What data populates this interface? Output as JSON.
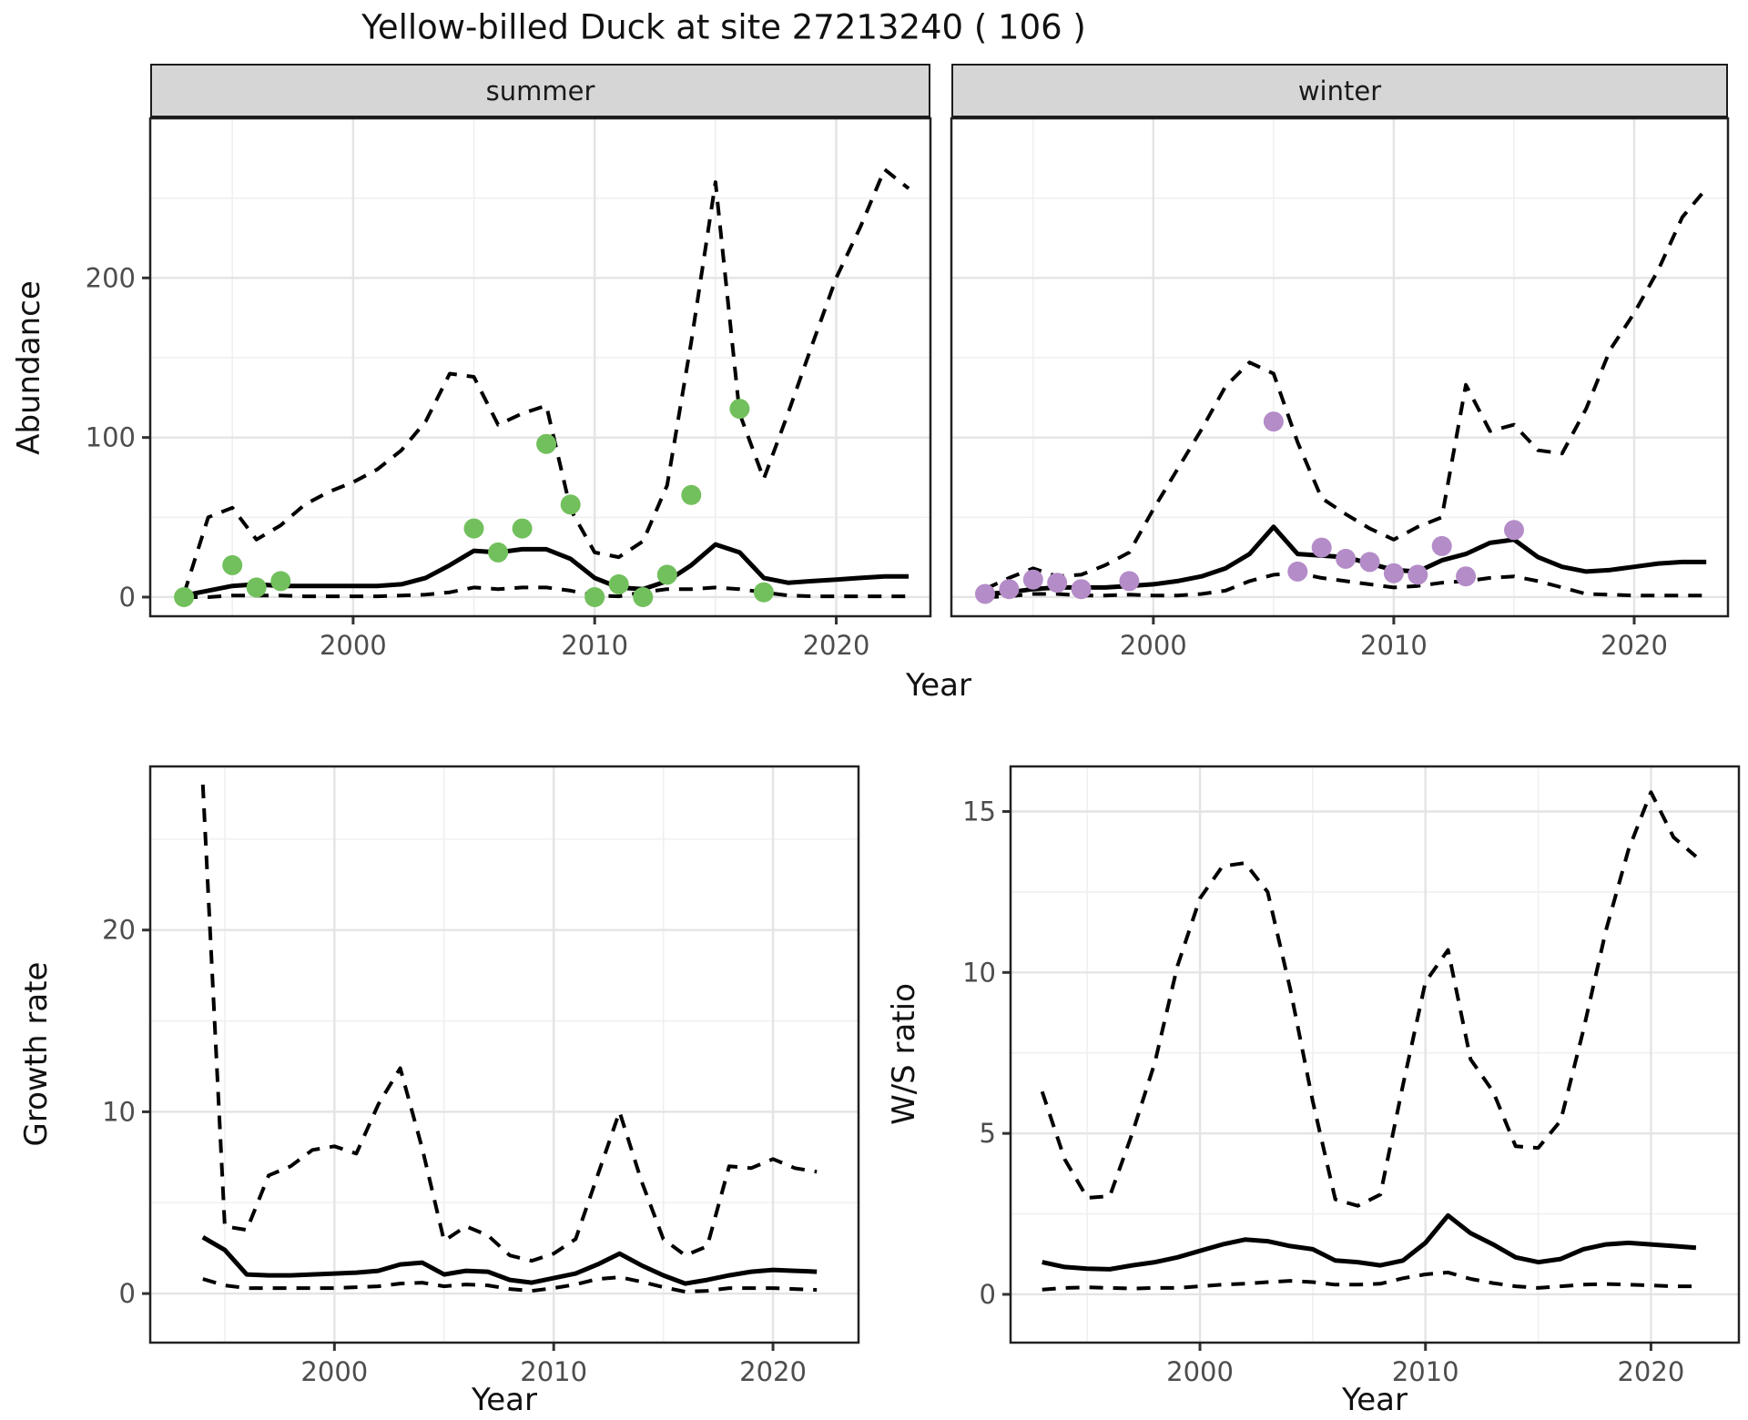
{
  "title": "Yellow-billed Duck at site 27213240 ( 106 )",
  "labels": {
    "year_axis": "Year",
    "abundance_axis": "Abundance",
    "growth_axis": "Growth rate",
    "ws_axis": "W/S ratio",
    "facet_summer": "summer",
    "facet_winter": "winter"
  },
  "colors": {
    "summer_points": "#72c05d",
    "winter_points": "#b48cc8",
    "fit_line": "#000000",
    "ci_line": "#000000",
    "grid_major": "#e4e4e4",
    "grid_minor": "#f0f0f0",
    "strip_bg": "#d6d6d6",
    "panel_border": "#222222",
    "axis_text": "#4d4d4d"
  },
  "chart_data": [
    {
      "id": "abundance-summer",
      "type": "line",
      "facet": "summer",
      "x_label": "Year",
      "y_label": "Abundance",
      "xlim": [
        1991.6,
        2023.9
      ],
      "ylim": [
        -12,
        300
      ],
      "xticks": [
        2000,
        2010,
        2020
      ],
      "xticks_minor": [
        1995,
        2005,
        2015
      ],
      "yticks": [
        0,
        100,
        200
      ],
      "yticks_minor": [
        50,
        150,
        250
      ],
      "grid": true,
      "legend": "none",
      "years": [
        1993,
        1994,
        1995,
        1996,
        1997,
        1998,
        1999,
        2000,
        2001,
        2002,
        2003,
        2004,
        2005,
        2006,
        2007,
        2008,
        2009,
        2010,
        2011,
        2012,
        2013,
        2014,
        2015,
        2016,
        2017,
        2018,
        2019,
        2020,
        2021,
        2022,
        2023
      ],
      "series": [
        {
          "name": "fit",
          "style": "solid",
          "values": [
            1,
            4,
            7,
            8,
            7,
            7,
            7,
            7,
            7,
            8,
            12,
            20,
            29,
            28,
            30,
            30,
            24,
            12,
            6,
            5,
            10,
            20,
            33,
            28,
            12,
            9,
            10,
            11,
            12,
            13,
            13
          ]
        },
        {
          "name": "upper_ci",
          "style": "dashed",
          "values": [
            2,
            50,
            56,
            36,
            45,
            58,
            66,
            72,
            80,
            92,
            110,
            140,
            138,
            108,
            115,
            120,
            55,
            28,
            25,
            35,
            70,
            160,
            260,
            115,
            74,
            115,
            158,
            200,
            232,
            268,
            256
          ]
        },
        {
          "name": "lower_ci",
          "style": "dashed",
          "values": [
            0,
            0,
            1,
            1,
            1,
            0.5,
            0.5,
            0.5,
            0.5,
            1,
            1.5,
            3,
            6,
            5,
            6,
            6,
            4,
            1,
            0.5,
            3,
            5,
            5,
            6,
            5,
            3,
            1,
            0.5,
            0.5,
            0.5,
            0.5,
            0.5
          ]
        }
      ],
      "observed_points": {
        "color_key": "summer_points",
        "data": [
          [
            1993,
            0
          ],
          [
            1995,
            20
          ],
          [
            1996,
            6
          ],
          [
            1997,
            10
          ],
          [
            2005,
            43
          ],
          [
            2006,
            28
          ],
          [
            2007,
            43
          ],
          [
            2008,
            96
          ],
          [
            2009,
            58
          ],
          [
            2010,
            0
          ],
          [
            2011,
            8
          ],
          [
            2012,
            0
          ],
          [
            2013,
            14
          ],
          [
            2014,
            64
          ],
          [
            2016,
            118
          ],
          [
            2017,
            3
          ]
        ]
      }
    },
    {
      "id": "abundance-winter",
      "type": "line",
      "facet": "winter",
      "x_label": "Year",
      "y_label": "Abundance",
      "xlim": [
        1991.6,
        2023.9
      ],
      "ylim": [
        -12,
        300
      ],
      "xticks": [
        2000,
        2010,
        2020
      ],
      "xticks_minor": [
        1995,
        2005,
        2015
      ],
      "yticks": [
        0,
        100,
        200
      ],
      "yticks_minor": [
        50,
        150,
        250
      ],
      "grid": true,
      "legend": "none",
      "years": [
        1993,
        1994,
        1995,
        1996,
        1997,
        1998,
        1999,
        2000,
        2001,
        2002,
        2003,
        2004,
        2005,
        2006,
        2007,
        2008,
        2009,
        2010,
        2011,
        2012,
        2013,
        2014,
        2015,
        2016,
        2017,
        2018,
        2019,
        2020,
        2021,
        2022,
        2023
      ],
      "series": [
        {
          "name": "fit",
          "style": "solid",
          "values": [
            2,
            3,
            5,
            6,
            6,
            6,
            7,
            8,
            10,
            13,
            18,
            27,
            44,
            27,
            26,
            25,
            21,
            17,
            16,
            23,
            27,
            34,
            36,
            25,
            19,
            16,
            17,
            19,
            21,
            22,
            22
          ]
        },
        {
          "name": "upper_ci",
          "style": "dashed",
          "values": [
            5,
            12,
            18,
            13,
            14,
            20,
            28,
            55,
            80,
            105,
            132,
            147,
            140,
            97,
            62,
            52,
            43,
            36,
            44,
            50,
            133,
            104,
            108,
            92,
            90,
            118,
            155,
            178,
            205,
            238,
            256
          ]
        },
        {
          "name": "lower_ci",
          "style": "dashed",
          "values": [
            0,
            0.5,
            2,
            2,
            1,
            1,
            1.5,
            1,
            1,
            2,
            4,
            10,
            14,
            15,
            12,
            10,
            8,
            6,
            7,
            9,
            10,
            12,
            13,
            10,
            6,
            2,
            1.5,
            1,
            1,
            1,
            1
          ]
        }
      ],
      "observed_points": {
        "color_key": "winter_points",
        "data": [
          [
            1993,
            2
          ],
          [
            1994,
            5
          ],
          [
            1995,
            11
          ],
          [
            1996,
            9
          ],
          [
            1997,
            5
          ],
          [
            1999,
            10
          ],
          [
            2005,
            110
          ],
          [
            2006,
            16
          ],
          [
            2007,
            31
          ],
          [
            2008,
            24
          ],
          [
            2009,
            22
          ],
          [
            2010,
            15
          ],
          [
            2011,
            14
          ],
          [
            2012,
            32
          ],
          [
            2013,
            13
          ],
          [
            2015,
            42
          ]
        ]
      }
    },
    {
      "id": "growth-rate",
      "type": "line",
      "facet": null,
      "x_label": "Year",
      "y_label": "Growth rate",
      "xlim": [
        1991.6,
        2023.9
      ],
      "ylim": [
        -2.7,
        29
      ],
      "xticks": [
        2000,
        2010,
        2020
      ],
      "xticks_minor": [
        1995,
        2005,
        2015
      ],
      "yticks": [
        0,
        10,
        20
      ],
      "yticks_minor": [
        5,
        15,
        25
      ],
      "grid": true,
      "legend": "none",
      "years": [
        1994,
        1995,
        1996,
        1997,
        1998,
        1999,
        2000,
        2001,
        2002,
        2003,
        2004,
        2005,
        2006,
        2007,
        2008,
        2009,
        2010,
        2011,
        2012,
        2013,
        2014,
        2015,
        2016,
        2017,
        2018,
        2019,
        2020,
        2021,
        2022
      ],
      "series": [
        {
          "name": "fit",
          "style": "solid",
          "values": [
            3.1,
            2.4,
            1.05,
            1,
            1,
            1.05,
            1.1,
            1.15,
            1.25,
            1.6,
            1.7,
            1.05,
            1.25,
            1.2,
            0.75,
            0.6,
            0.85,
            1.1,
            1.6,
            2.2,
            1.55,
            1,
            0.55,
            0.75,
            1,
            1.2,
            1.3,
            1.25,
            1.2
          ]
        },
        {
          "name": "upper_ci",
          "style": "dashed",
          "values": [
            28,
            3.7,
            3.5,
            6.5,
            7,
            7.9,
            8.1,
            7.7,
            10.4,
            12.4,
            8,
            2.9,
            3.7,
            3.2,
            2.1,
            1.8,
            2.2,
            3,
            6.5,
            10,
            6.2,
            3,
            2.1,
            2.6,
            7,
            6.9,
            7.4,
            6.9,
            6.7
          ]
        },
        {
          "name": "lower_ci",
          "style": "dashed",
          "values": [
            0.8,
            0.45,
            0.3,
            0.3,
            0.3,
            0.3,
            0.3,
            0.35,
            0.4,
            0.55,
            0.6,
            0.4,
            0.5,
            0.45,
            0.25,
            0.15,
            0.3,
            0.5,
            0.8,
            0.9,
            0.65,
            0.35,
            0.1,
            0.15,
            0.3,
            0.3,
            0.3,
            0.25,
            0.2
          ]
        }
      ],
      "observed_points": null
    },
    {
      "id": "ws-ratio",
      "type": "line",
      "facet": null,
      "x_label": "Year",
      "y_label": "W/S ratio",
      "xlim": [
        1991.6,
        2023.9
      ],
      "ylim": [
        -1.5,
        16.4
      ],
      "xticks": [
        2000,
        2010,
        2020
      ],
      "xticks_minor": [
        1995,
        2005,
        2015
      ],
      "yticks": [
        0,
        5,
        10,
        15
      ],
      "yticks_minor": [
        2.5,
        7.5,
        12.5
      ],
      "grid": true,
      "legend": "none",
      "years": [
        1993,
        1994,
        1995,
        1996,
        1997,
        1998,
        1999,
        2000,
        2001,
        2002,
        2003,
        2004,
        2005,
        2006,
        2007,
        2008,
        2009,
        2010,
        2011,
        2012,
        2013,
        2014,
        2015,
        2016,
        2017,
        2018,
        2019,
        2020,
        2021,
        2022
      ],
      "series": [
        {
          "name": "fit",
          "style": "solid",
          "values": [
            1,
            0.85,
            0.8,
            0.78,
            0.9,
            1,
            1.15,
            1.35,
            1.55,
            1.7,
            1.65,
            1.5,
            1.4,
            1.05,
            1,
            0.9,
            1.05,
            1.6,
            2.45,
            1.9,
            1.55,
            1.15,
            1,
            1.1,
            1.4,
            1.55,
            1.6,
            1.55,
            1.5,
            1.45
          ]
        },
        {
          "name": "upper_ci",
          "style": "dashed",
          "values": [
            6.3,
            4.2,
            3,
            3.05,
            5,
            7.2,
            10.2,
            12.3,
            13.3,
            13.4,
            12.5,
            9.5,
            6,
            2.95,
            2.75,
            3.1,
            6.5,
            9.7,
            10.7,
            7.3,
            6.3,
            4.6,
            4.55,
            5.4,
            8.2,
            11.3,
            13.8,
            15.6,
            14.2,
            13.6
          ]
        },
        {
          "name": "lower_ci",
          "style": "dashed",
          "values": [
            0.15,
            0.2,
            0.22,
            0.2,
            0.18,
            0.2,
            0.2,
            0.25,
            0.3,
            0.33,
            0.38,
            0.42,
            0.38,
            0.3,
            0.3,
            0.33,
            0.5,
            0.62,
            0.68,
            0.48,
            0.35,
            0.25,
            0.2,
            0.25,
            0.3,
            0.32,
            0.3,
            0.28,
            0.25,
            0.25
          ]
        }
      ],
      "observed_points": null
    }
  ]
}
